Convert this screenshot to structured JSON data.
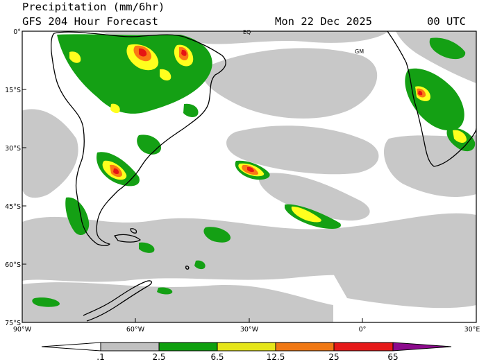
{
  "header": {
    "title": "Precipitation (mm/6hr)",
    "subtitle": "GFS 204 Hour Forecast",
    "date": "Mon 22 Dec 2025",
    "time": "00 UTC"
  },
  "map": {
    "lat_labels": [
      "0°",
      "15°S",
      "30°S",
      "45°S",
      "60°S",
      "75°S"
    ],
    "lon_labels": [
      "90°W",
      "60°W",
      "30°W",
      "0°",
      "30°E"
    ],
    "markers": [
      "EQ",
      "GM"
    ]
  },
  "colorbar": {
    "labels": [
      ".1",
      "2.5",
      "6.5",
      "12.5",
      "25",
      "65"
    ],
    "colors": [
      "#ffffff",
      "#c0c0c0",
      "#0fa00f",
      "#e6e619",
      "#f07814",
      "#e61919",
      "#8c0a8c"
    ]
  },
  "palette": {
    "ocean": "#ffffff",
    "light_rain": "#c8c8c8",
    "moderate": "#14a014",
    "heavy": "#ffff1e",
    "very_heavy": "#fa7814",
    "extreme": "#e61414"
  }
}
